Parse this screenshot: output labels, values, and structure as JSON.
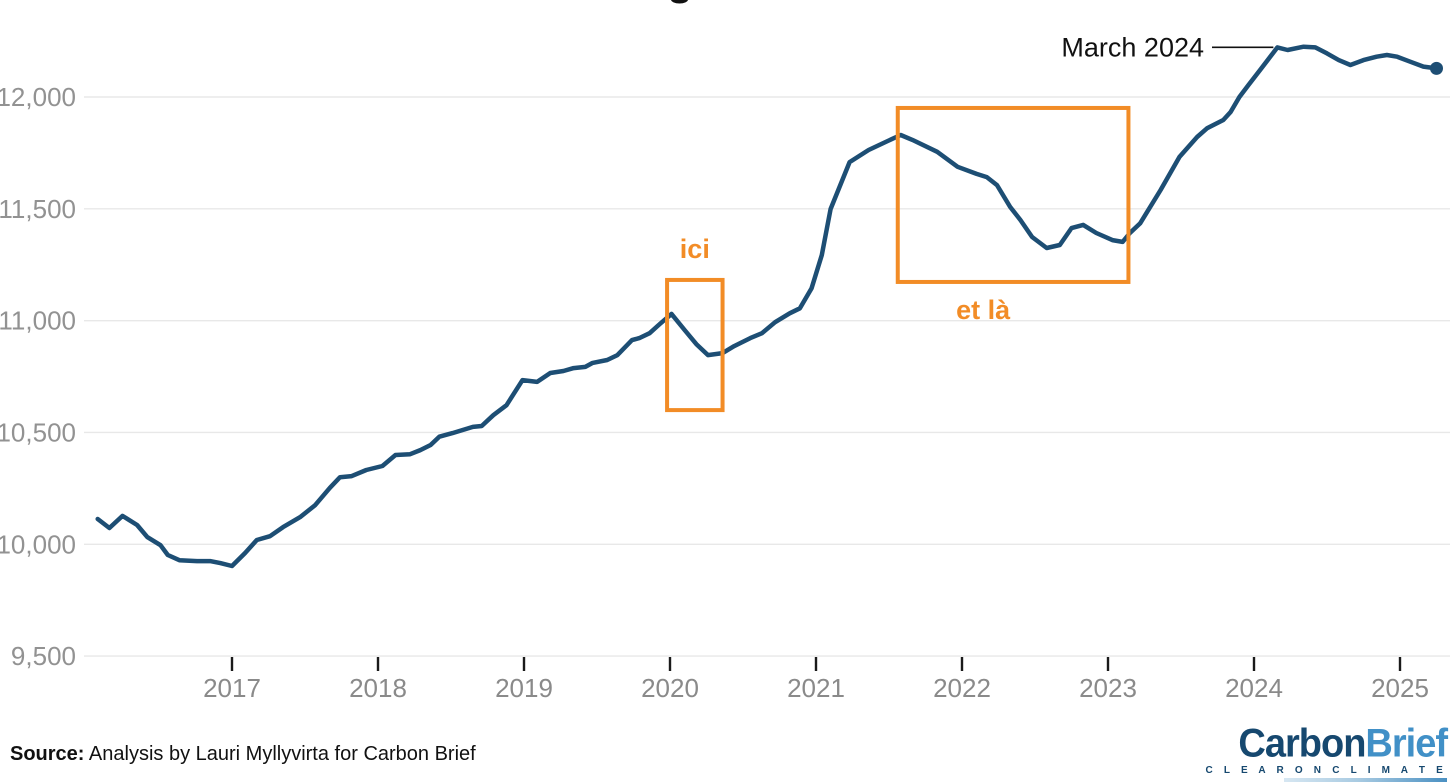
{
  "chart_data": {
    "type": "line",
    "title": "",
    "title_fragment_note": "only the descender of one glyph of the cropped-off title is visible at top center",
    "xlabel": "",
    "ylabel": "",
    "xlim": [
      2016.05,
      2025.35
    ],
    "ylim": [
      9500,
      12250
    ],
    "grid": "horizontal",
    "x_axis": {
      "tick_years": [
        2017,
        2018,
        2019,
        2020,
        2021,
        2022,
        2023,
        2024,
        2025
      ]
    },
    "y_axis": {
      "tick_values": [
        12000,
        11500,
        11000,
        10500,
        10000,
        9500
      ],
      "tick_labels": [
        "12,000",
        "11,500",
        "11,000",
        "10,500",
        "10,000",
        "9,500"
      ]
    },
    "series": [
      {
        "name": "emissions-12-month-rolling",
        "color": "#1d4e74",
        "end_marker": true,
        "points": [
          [
            2016.08,
            10113
          ],
          [
            2016.16,
            10073
          ],
          [
            2016.25,
            10127
          ],
          [
            2016.35,
            10086
          ],
          [
            2016.42,
            10032
          ],
          [
            2016.51,
            9996
          ],
          [
            2016.56,
            9952
          ],
          [
            2016.64,
            9929
          ],
          [
            2016.76,
            9925
          ],
          [
            2016.85,
            9925
          ],
          [
            2016.92,
            9916
          ],
          [
            2017.0,
            9903
          ],
          [
            2017.09,
            9961
          ],
          [
            2017.17,
            10019
          ],
          [
            2017.26,
            10036
          ],
          [
            2017.35,
            10077
          ],
          [
            2017.47,
            10123
          ],
          [
            2017.57,
            10175
          ],
          [
            2017.67,
            10252
          ],
          [
            2017.74,
            10300
          ],
          [
            2017.82,
            10305
          ],
          [
            2017.92,
            10332
          ],
          [
            2018.03,
            10350
          ],
          [
            2018.12,
            10399
          ],
          [
            2018.22,
            10403
          ],
          [
            2018.29,
            10421
          ],
          [
            2018.36,
            10444
          ],
          [
            2018.42,
            10481
          ],
          [
            2018.51,
            10497
          ],
          [
            2018.65,
            10525
          ],
          [
            2018.71,
            10529
          ],
          [
            2018.79,
            10577
          ],
          [
            2018.88,
            10622
          ],
          [
            2018.99,
            10734
          ],
          [
            2019.09,
            10726
          ],
          [
            2019.18,
            10766
          ],
          [
            2019.27,
            10775
          ],
          [
            2019.34,
            10788
          ],
          [
            2019.42,
            10793
          ],
          [
            2019.47,
            10811
          ],
          [
            2019.57,
            10824
          ],
          [
            2019.64,
            10846
          ],
          [
            2019.74,
            10913
          ],
          [
            2019.79,
            10922
          ],
          [
            2019.86,
            10944
          ],
          [
            2019.93,
            10985
          ],
          [
            2020.01,
            11030
          ],
          [
            2020.1,
            10958
          ],
          [
            2020.18,
            10895
          ],
          [
            2020.26,
            10846
          ],
          [
            2020.36,
            10855
          ],
          [
            2020.44,
            10886
          ],
          [
            2020.55,
            10922
          ],
          [
            2020.63,
            10944
          ],
          [
            2020.72,
            10993
          ],
          [
            2020.82,
            11033
          ],
          [
            2020.89,
            11055
          ],
          [
            2020.97,
            11145
          ],
          [
            2021.04,
            11293
          ],
          [
            2021.1,
            11499
          ],
          [
            2021.23,
            11709
          ],
          [
            2021.36,
            11763
          ],
          [
            2021.46,
            11794
          ],
          [
            2021.58,
            11830
          ],
          [
            2021.66,
            11808
          ],
          [
            2021.83,
            11755
          ],
          [
            2021.97,
            11688
          ],
          [
            2022.1,
            11656
          ],
          [
            2022.17,
            11642
          ],
          [
            2022.24,
            11606
          ],
          [
            2022.33,
            11508
          ],
          [
            2022.4,
            11450
          ],
          [
            2022.48,
            11374
          ],
          [
            2022.58,
            11325
          ],
          [
            2022.67,
            11338
          ],
          [
            2022.75,
            11414
          ],
          [
            2022.83,
            11428
          ],
          [
            2022.92,
            11392
          ],
          [
            2023.03,
            11360
          ],
          [
            2023.1,
            11352
          ],
          [
            2023.15,
            11392
          ],
          [
            2023.22,
            11435
          ],
          [
            2023.36,
            11584
          ],
          [
            2023.49,
            11732
          ],
          [
            2023.61,
            11821
          ],
          [
            2023.68,
            11861
          ],
          [
            2023.79,
            11897
          ],
          [
            2023.84,
            11933
          ],
          [
            2023.9,
            12000
          ],
          [
            2023.96,
            12052
          ],
          [
            2024.04,
            12119
          ],
          [
            2024.16,
            12222
          ],
          [
            2024.23,
            12210
          ],
          [
            2024.34,
            12225
          ],
          [
            2024.42,
            12222
          ],
          [
            2024.5,
            12195
          ],
          [
            2024.58,
            12165
          ],
          [
            2024.66,
            12143
          ],
          [
            2024.75,
            12165
          ],
          [
            2024.84,
            12180
          ],
          [
            2024.91,
            12188
          ],
          [
            2024.98,
            12180
          ],
          [
            2025.07,
            12158
          ],
          [
            2025.16,
            12136
          ],
          [
            2025.25,
            12128
          ]
        ]
      }
    ],
    "annotations": {
      "march_2024": {
        "label": "March 2024",
        "target_year": 2024.16,
        "target_value": 12222,
        "color": "#111111"
      },
      "box_ici": {
        "label": "ici",
        "x1": 2019.98,
        "x2": 2020.36,
        "v1": 10600,
        "v2": 11182,
        "label_position": "above"
      },
      "box_etla": {
        "label": "et là",
        "x1": 2021.56,
        "x2": 2023.14,
        "v1": 11173,
        "v2": 11951,
        "label_position": "below"
      }
    },
    "accent_orange": "#f28c26",
    "grid_color": "#e8e8e8",
    "axis_text_color": "#929292",
    "tick_mark_color": "#1a1a1a"
  },
  "footer": {
    "source_label": "Source:",
    "source_text": " Analysis by Lauri Myllyvirta for Carbon Brief"
  },
  "logo": {
    "part1": "Carbon",
    "part2": "Brief",
    "tagline": "C L E A R   O N   C L I M A T E",
    "color_part1": "#16486f",
    "color_part2": "#4190c7"
  }
}
